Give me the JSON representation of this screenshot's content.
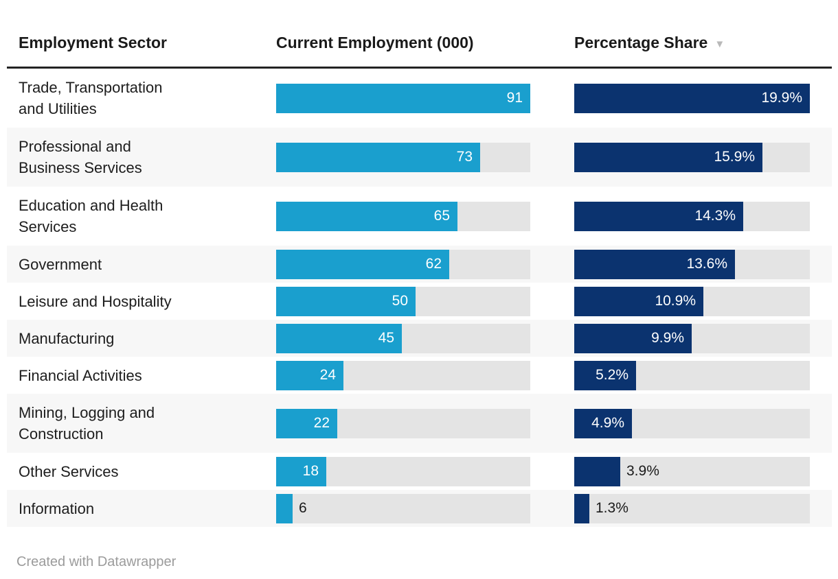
{
  "header": {
    "columns": [
      {
        "label": "Employment Sector"
      },
      {
        "label": "Current Employment (000)"
      },
      {
        "label": "Percentage Share"
      }
    ],
    "sort_icon": "▼",
    "sorted_column": "Percentage Share",
    "sort_direction": "descending"
  },
  "footer": {
    "attribution": "Created with Datawrapper"
  },
  "colors": {
    "employment_bar": "#1a9fce",
    "share_bar": "#0b336f",
    "bar_track": "#e4e4e4",
    "row_alt_bg": "#f7f7f7",
    "header_rule": "#222222",
    "header_text": "#1a1a1a",
    "sort_icon": "#b9b9b9",
    "footer_text": "#9b9b9b"
  },
  "chart_data": {
    "type": "table",
    "title": "",
    "columns": [
      "Employment Sector",
      "Current Employment (000)",
      "Percentage Share"
    ],
    "categories": [
      "Trade, Transportation and Utilities",
      "Professional and Business Services",
      "Education and Health Services",
      "Government",
      "Leisure and Hospitality",
      "Manufacturing",
      "Financial Activities",
      "Mining, Logging and Construction",
      "Other Services",
      "Information"
    ],
    "series": [
      {
        "name": "Current Employment (000)",
        "type": "bar",
        "values": [
          91,
          73,
          65,
          62,
          50,
          45,
          24,
          22,
          18,
          6
        ],
        "axis_max": 91
      },
      {
        "name": "Percentage Share",
        "type": "bar",
        "values": [
          19.9,
          15.9,
          14.3,
          13.6,
          10.9,
          9.9,
          5.2,
          4.9,
          3.9,
          1.3
        ],
        "axis_max": 19.9
      }
    ],
    "sorted_by": "Percentage Share",
    "sort_direction": "descending",
    "legend": "none",
    "grid": "off"
  },
  "rows": [
    {
      "sector": "Trade, Transportation\nand Utilities",
      "employment": 91,
      "employment_label": "91",
      "emp_inside": true,
      "share": 19.9,
      "share_label": "19.9%",
      "share_inside": true,
      "tall": true
    },
    {
      "sector": "Professional and\nBusiness Services",
      "employment": 73,
      "employment_label": "73",
      "emp_inside": true,
      "share": 15.9,
      "share_label": "15.9%",
      "share_inside": true,
      "tall": true
    },
    {
      "sector": "Education and Health\nServices",
      "employment": 65,
      "employment_label": "65",
      "emp_inside": true,
      "share": 14.3,
      "share_label": "14.3%",
      "share_inside": true,
      "tall": true
    },
    {
      "sector": "Government",
      "employment": 62,
      "employment_label": "62",
      "emp_inside": true,
      "share": 13.6,
      "share_label": "13.6%",
      "share_inside": true,
      "tall": false
    },
    {
      "sector": "Leisure and Hospitality",
      "employment": 50,
      "employment_label": "50",
      "emp_inside": true,
      "share": 10.9,
      "share_label": "10.9%",
      "share_inside": true,
      "tall": false
    },
    {
      "sector": "Manufacturing",
      "employment": 45,
      "employment_label": "45",
      "emp_inside": true,
      "share": 9.9,
      "share_label": "9.9%",
      "share_inside": true,
      "tall": false
    },
    {
      "sector": "Financial Activities",
      "employment": 24,
      "employment_label": "24",
      "emp_inside": true,
      "share": 5.2,
      "share_label": "5.2%",
      "share_inside": true,
      "tall": false
    },
    {
      "sector": "Mining, Logging and\nConstruction",
      "employment": 22,
      "employment_label": "22",
      "emp_inside": true,
      "share": 4.9,
      "share_label": "4.9%",
      "share_inside": true,
      "tall": true
    },
    {
      "sector": "Other Services",
      "employment": 18,
      "employment_label": "18",
      "emp_inside": true,
      "share": 3.9,
      "share_label": "3.9%",
      "share_inside": false,
      "tall": false
    },
    {
      "sector": "Information",
      "employment": 6,
      "employment_label": "6",
      "emp_inside": false,
      "share": 1.3,
      "share_label": "1.3%",
      "share_inside": false,
      "tall": false
    }
  ]
}
